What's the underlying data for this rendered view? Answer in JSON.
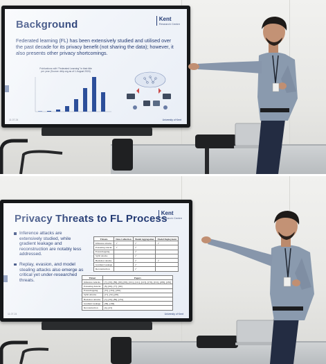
{
  "top_slide": {
    "title": "Background",
    "logo_text": "Kent",
    "logo_subtext": "Research Centre",
    "paragraph": "Federated learning (FL) has been extensively studied and utilised over the past decade for its privacy benefit (not sharing the data); however, it also presents other privacy shortcomings.",
    "chart_caption": "Publications with \"Federated Learning\" in their title per year (Source: dblp.org as of 1 August 2024)",
    "footer_left": "11.07.24",
    "footer_right": "University of Kent"
  },
  "bottom_slide": {
    "title": "Privacy Threats to FL Process",
    "logo_text": "Kent",
    "logo_subtext": "Research Centre",
    "bullets": [
      "Inference attacks are extensively studied, while gradient leakage and reconstruction are notably less addressed.",
      "Replay, evasion, and model stealing attacks also emerge as critical yet under-researched threats."
    ],
    "footer_left": "11.07.24",
    "footer_right": "University of Kent",
    "threats_table": {
      "headers": [
        "Threats",
        "Data Collection",
        "Model Aggregation",
        "Model Deployment"
      ],
      "rows": [
        [
          "Inference attacks",
          "✓",
          "✓",
          "✓"
        ],
        [
          "Poisoning attacks",
          "✓",
          "✓",
          ""
        ],
        [
          "Eavesdropping",
          "",
          "✓",
          ""
        ],
        [
          "Sybil attacks",
          "",
          "✓",
          ""
        ],
        [
          "Backdoor attacks",
          "",
          "✓",
          "✓"
        ],
        [
          "Gradient Leakage",
          "",
          "✓",
          ""
        ],
        [
          "Reconstruction",
          "",
          "✓",
          ""
        ]
      ]
    },
    "papers_table": {
      "headers": [
        "Threat",
        "Papers"
      ],
      "rows": [
        [
          "Inference Attacks",
          "[7], [30], [89], [90], [99], [101], [121], [123], [176], [191], [209], [230]"
        ],
        [
          "Poisoning Attacks",
          "[8], [66], [77], [90]"
        ],
        [
          "Eavesdropping",
          "[57], [161], [202]"
        ],
        [
          "Sybil Attacks",
          "[17], [52], [68]"
        ],
        [
          "Backdoor Attacks",
          "[7], [30], [89], [181]"
        ],
        [
          "Gradient Leakage",
          "[38], [166]"
        ],
        [
          "Reconstruction",
          "[4], [43]"
        ]
      ]
    }
  }
}
